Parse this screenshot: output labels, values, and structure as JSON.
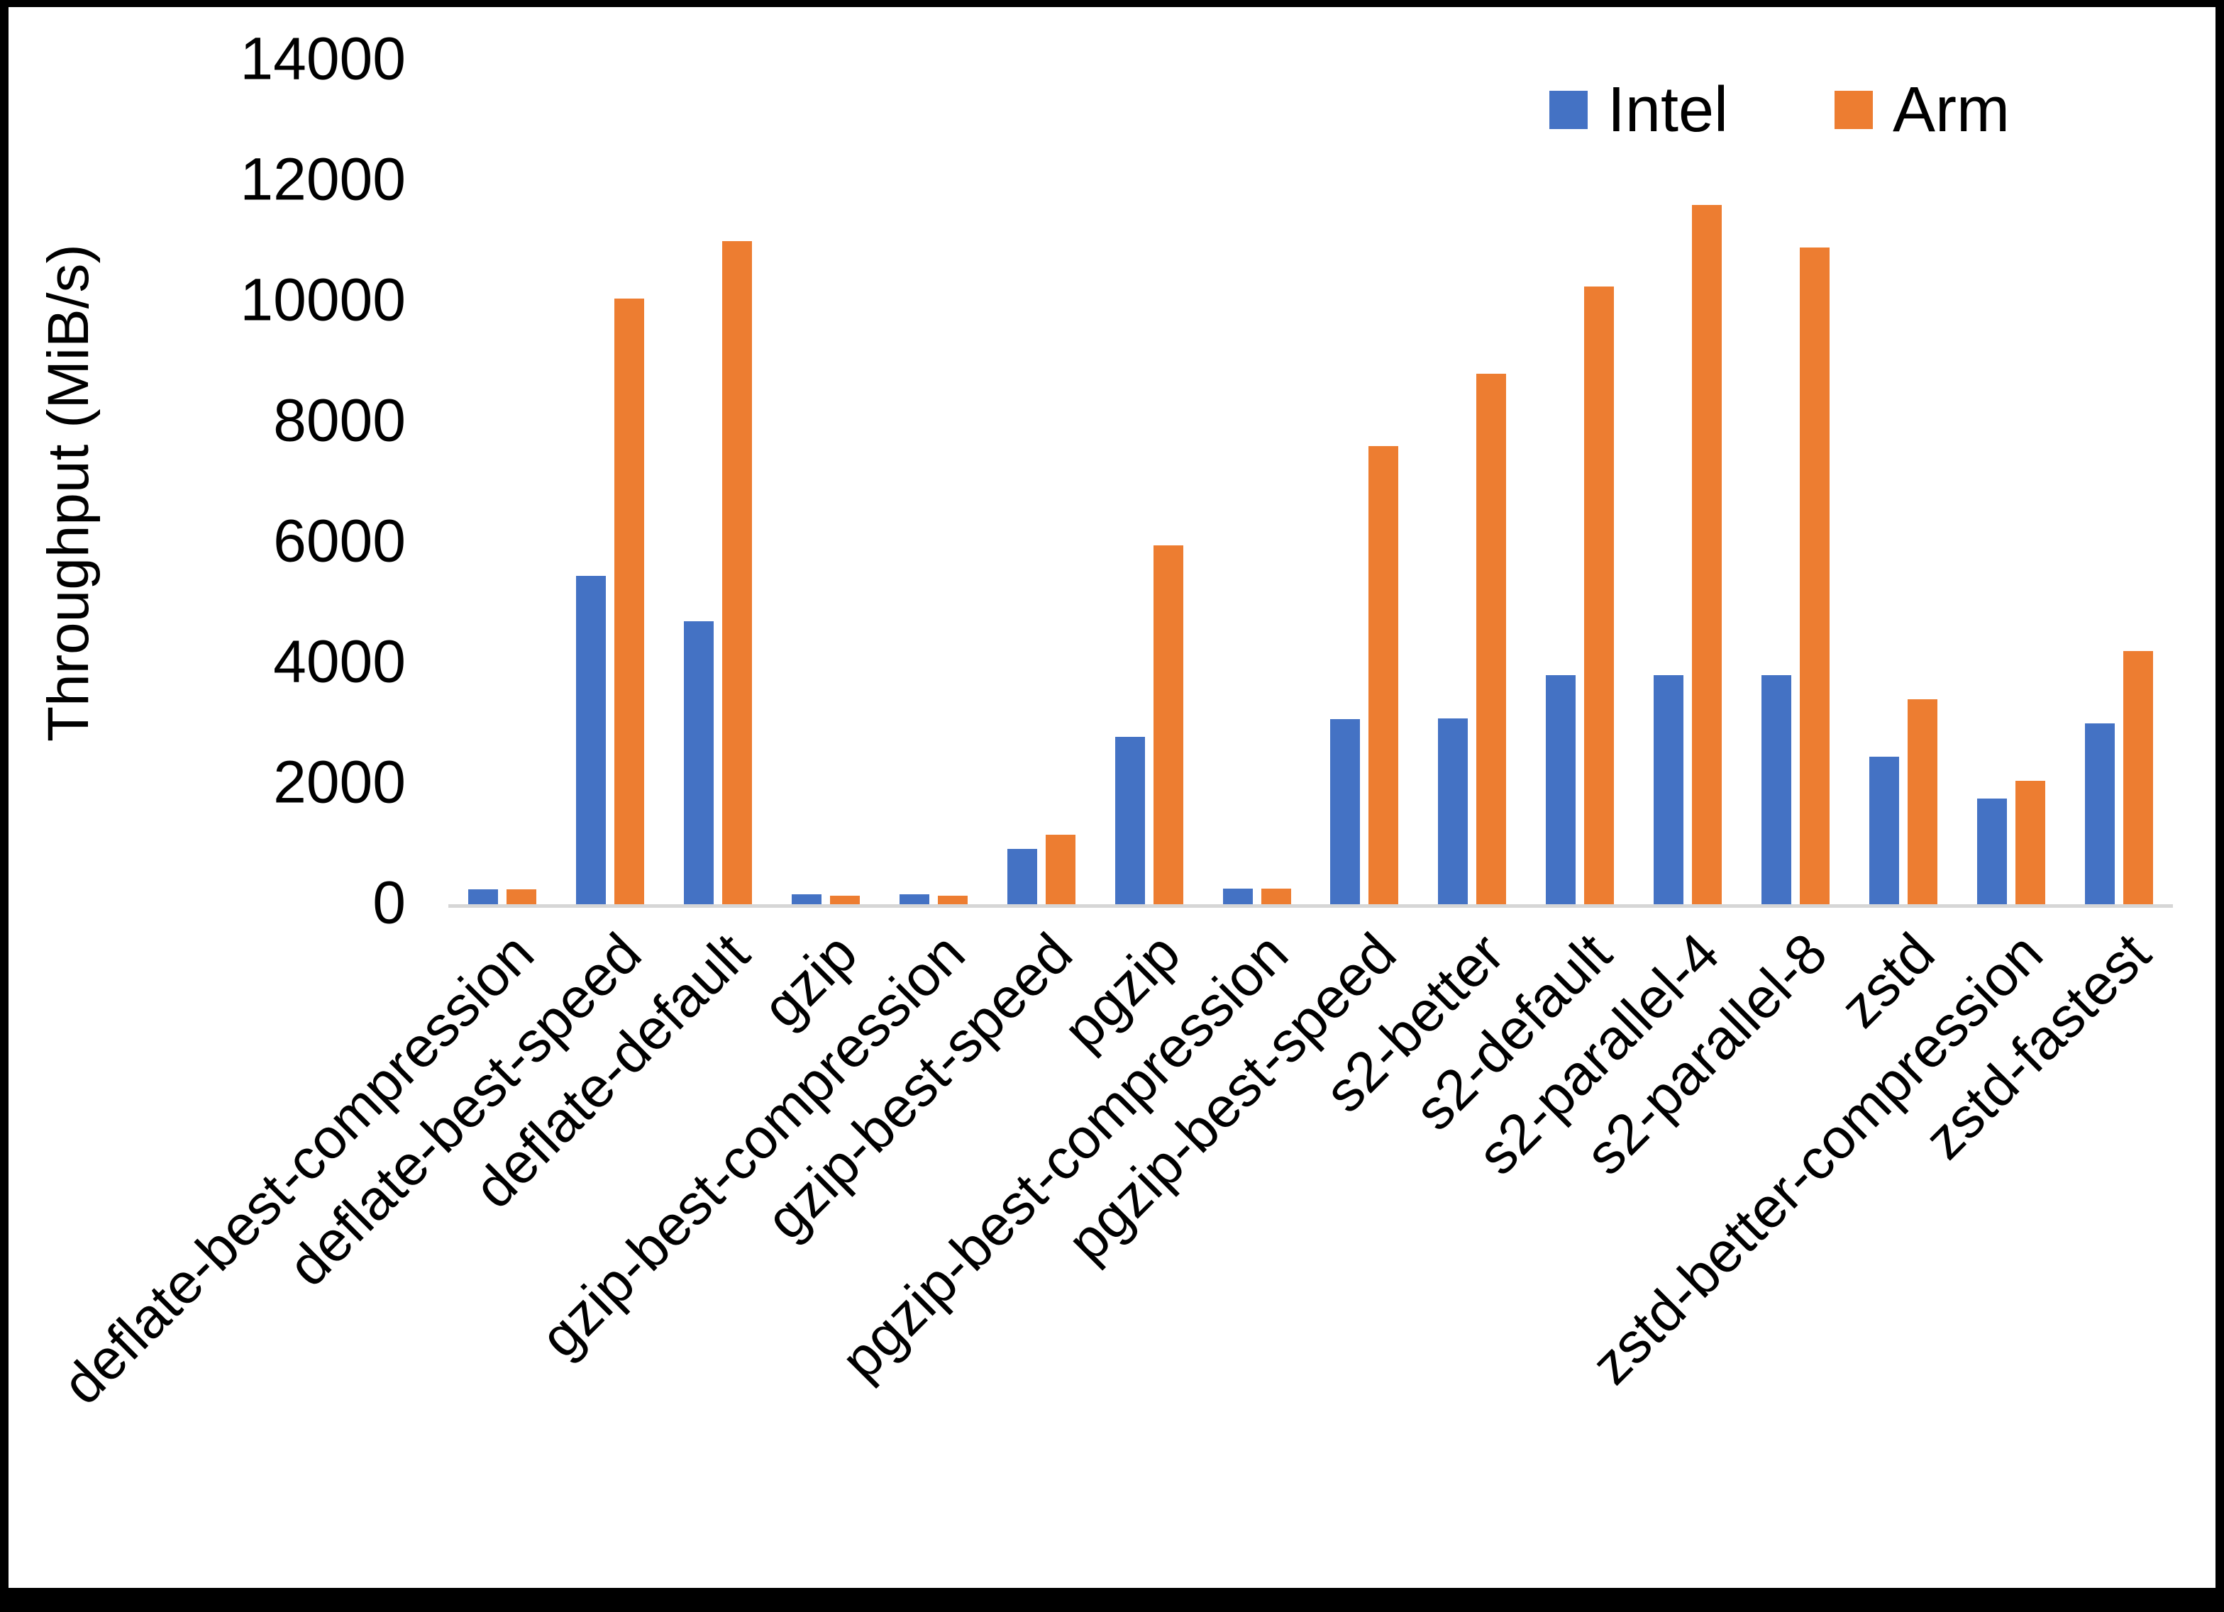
{
  "chart_data": {
    "type": "bar",
    "title": "",
    "xlabel": "",
    "ylabel": "Throughput (MiB/s)",
    "ylim": [
      0,
      14000
    ],
    "yticks": [
      14000,
      12000,
      10000,
      8000,
      6000,
      4000,
      2000,
      0
    ],
    "grid": false,
    "legend_position": "top-right",
    "categories": [
      "deflate-best-compression",
      "deflate-best-speed",
      "deflate-default",
      "gzip",
      "gzip-best-compression",
      "gzip-best-speed",
      "pgzip",
      "pgzip-best-compression",
      "pgzip-best-speed",
      "s2-better",
      "s2-default",
      "s2-parallel-4",
      "s2-parallel-8",
      "zstd",
      "zstd-better-compression",
      "zstd-fastest"
    ],
    "series": [
      {
        "name": "Intel",
        "color": "#4472C4",
        "values": [
          250,
          5450,
          4700,
          160,
          160,
          920,
          2780,
          260,
          3070,
          3080,
          3800,
          3800,
          3800,
          2450,
          1750,
          3000
        ]
      },
      {
        "name": "Arm",
        "color": "#ED7D31",
        "values": [
          250,
          10050,
          11000,
          140,
          140,
          1150,
          5950,
          260,
          7600,
          8800,
          10250,
          11600,
          10900,
          3400,
          2050,
          4200
        ]
      }
    ]
  },
  "colors": {
    "intel": "#4472C4",
    "arm": "#ED7D31",
    "axis_line": "#d6d6d6",
    "text": "#000000",
    "frame_border": "#000000",
    "background": "#ffffff"
  }
}
